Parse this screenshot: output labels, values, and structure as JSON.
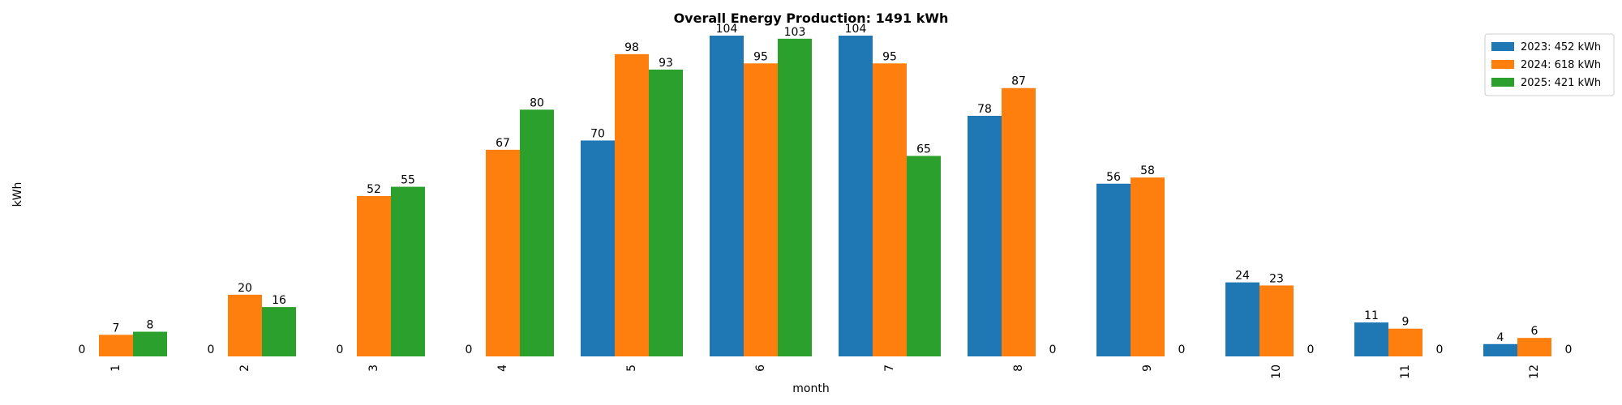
{
  "chart_data": {
    "type": "bar",
    "title": "Overall Energy Production: 1491 kWh",
    "xlabel": "month",
    "ylabel": "kWh",
    "categories": [
      "1",
      "2",
      "3",
      "4",
      "5",
      "6",
      "7",
      "8",
      "9",
      "10",
      "11",
      "12"
    ],
    "ylim": [
      0,
      110
    ],
    "grid": false,
    "legend_position": "top-right",
    "series": [
      {
        "name": "2023: 452 kWh",
        "color": "#1f77b4",
        "values": [
          0,
          0,
          0,
          0,
          70,
          104,
          104,
          78,
          56,
          24,
          11,
          4
        ]
      },
      {
        "name": "2024: 618 kWh",
        "color": "#ff7f0e",
        "values": [
          7,
          20,
          52,
          67,
          98,
          95,
          95,
          87,
          58,
          23,
          9,
          6
        ]
      },
      {
        "name": "2025: 421 kWh",
        "color": "#2ca02c",
        "values": [
          8,
          16,
          55,
          80,
          93,
          103,
          65,
          0,
          0,
          0,
          0,
          0
        ]
      }
    ]
  }
}
